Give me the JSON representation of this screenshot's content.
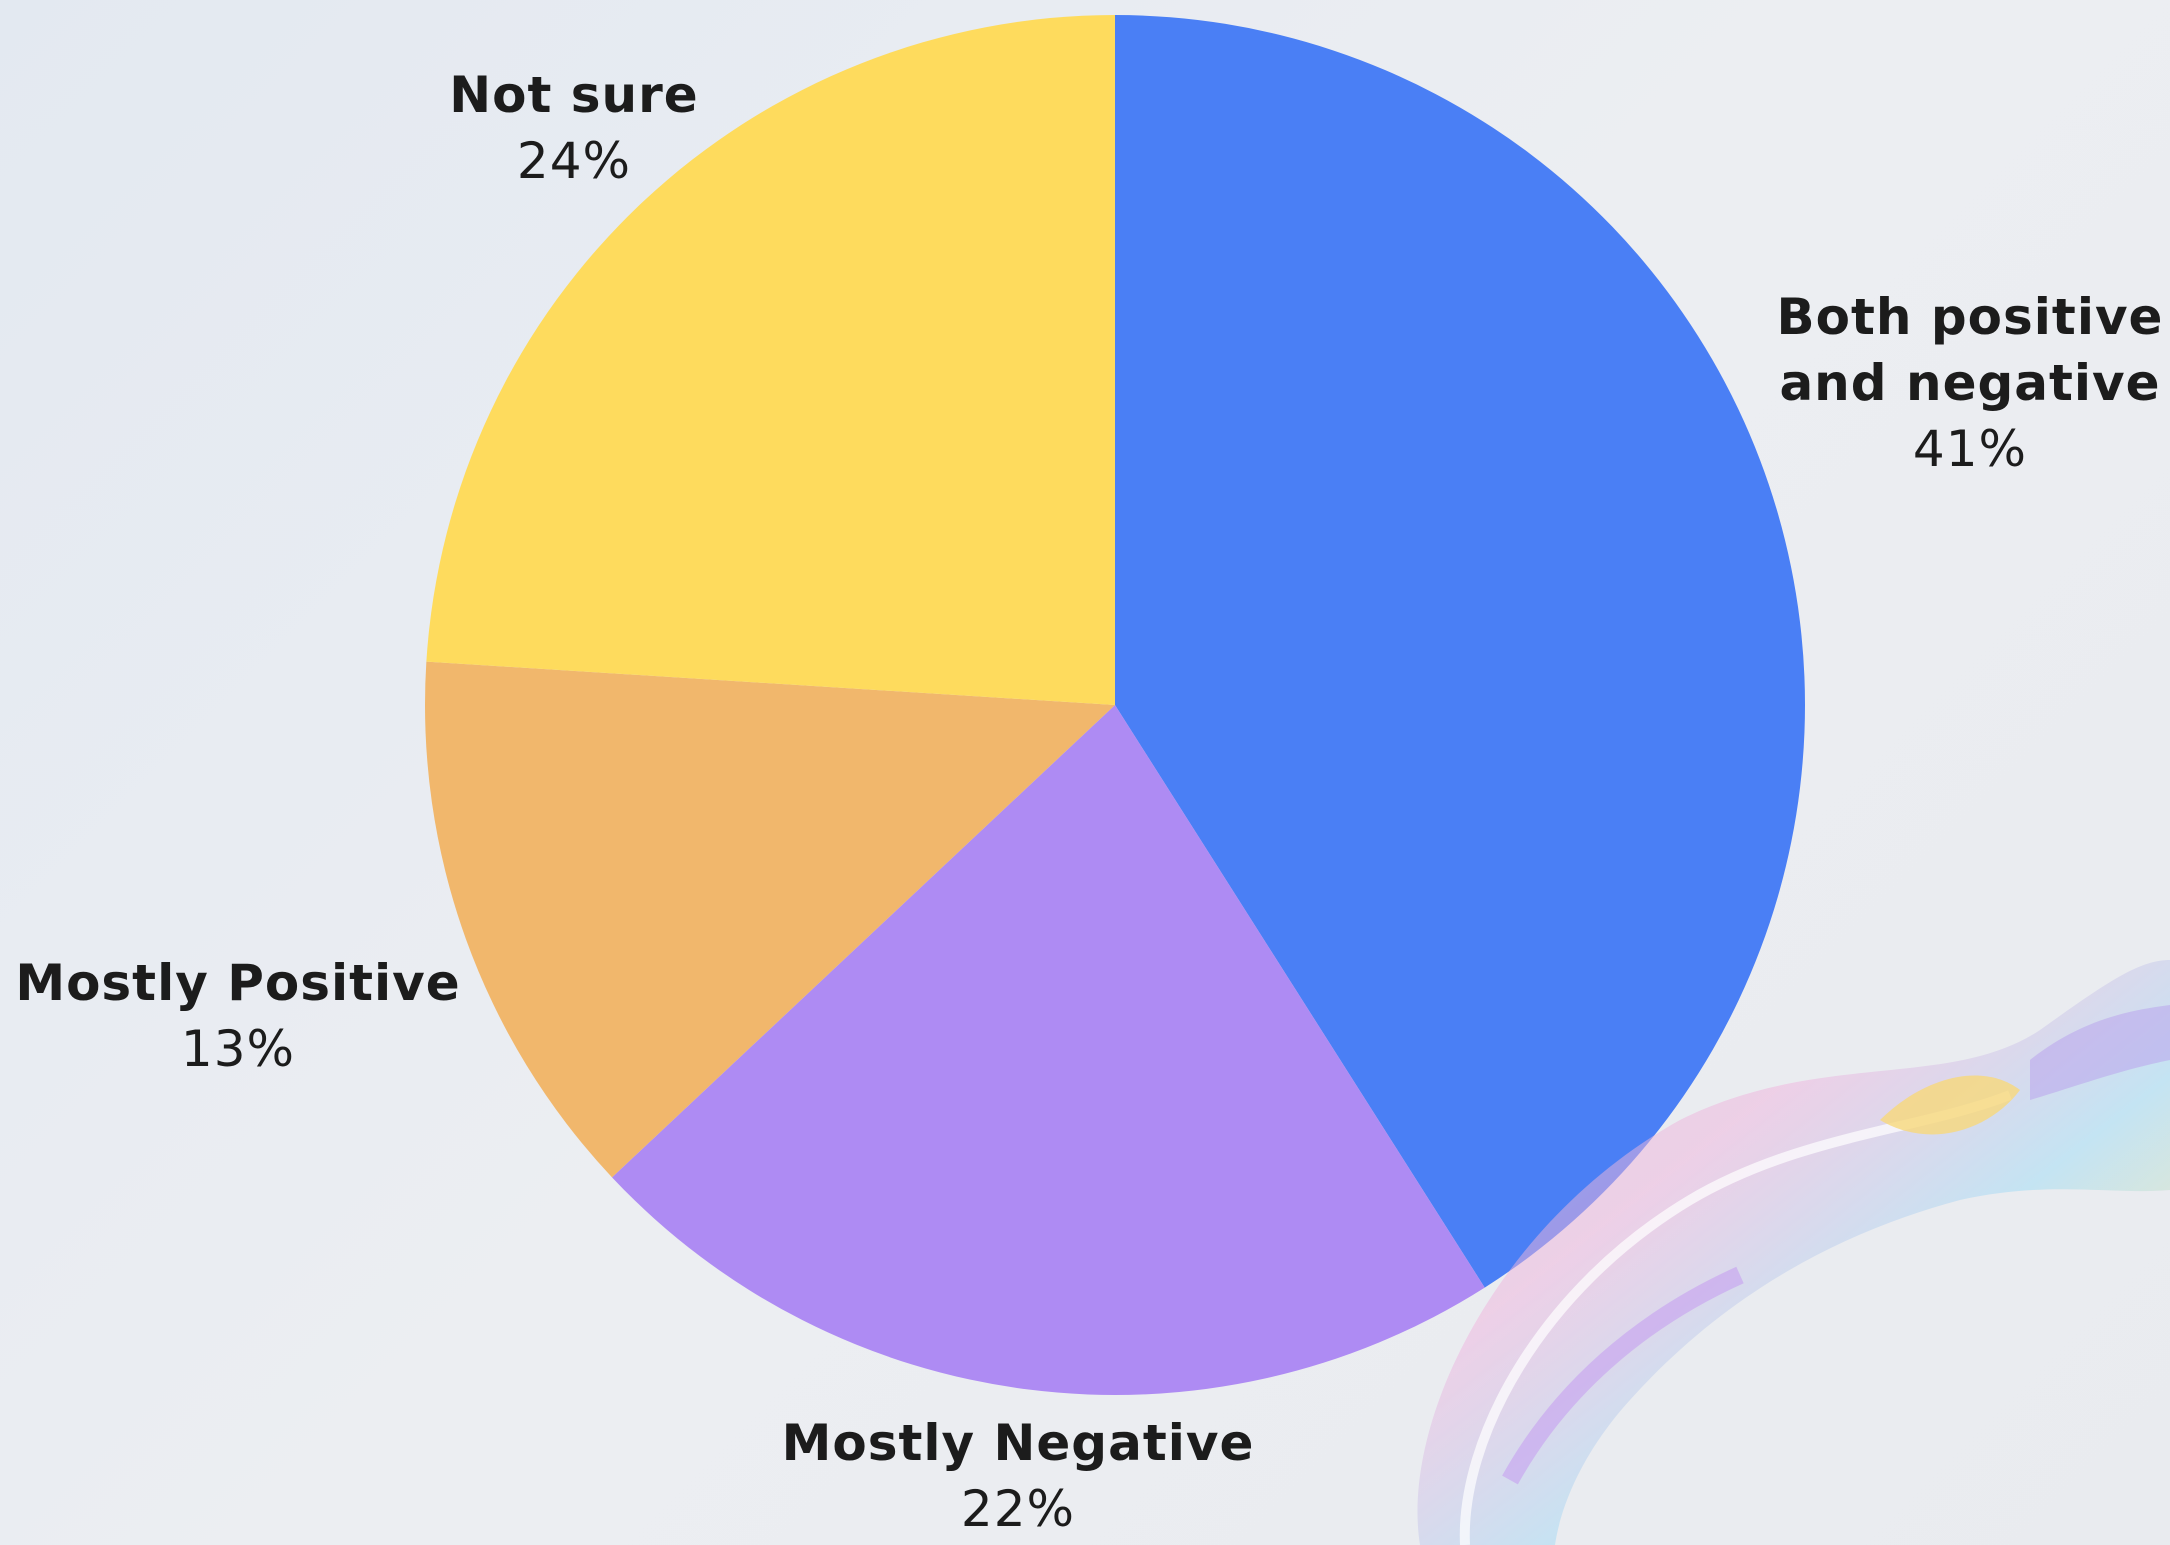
{
  "chart_data": {
    "type": "pie",
    "title": "",
    "start_angle": "12 o'clock, clockwise",
    "slices": [
      {
        "label": "Both positive and negative",
        "label_lines": [
          "Both positive",
          "and negative"
        ],
        "value": 41,
        "value_label": "41%",
        "color": "#4a7ff5"
      },
      {
        "label": "Mostly Negative",
        "label_lines": [
          "Mostly Negative"
        ],
        "value": 22,
        "value_label": "22%",
        "color": "#ae8bf3"
      },
      {
        "label": "Mostly Positive",
        "label_lines": [
          "Mostly Positive"
        ],
        "value": 13,
        "value_label": "13%",
        "color": "#f1b76c"
      },
      {
        "label": "Not sure",
        "label_lines": [
          "Not sure"
        ],
        "value": 24,
        "value_label": "24%",
        "color": "#fedb5d"
      }
    ]
  },
  "decoration": {
    "ribbon": "iridescent-glass-ribbon",
    "ribbon_colors": [
      "#d7dce3",
      "#f3a7d8",
      "#9ad7f5",
      "#f8e38a"
    ]
  }
}
